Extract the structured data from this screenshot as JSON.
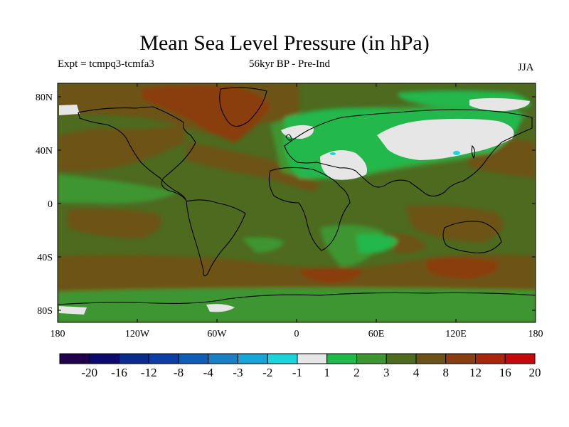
{
  "title": "Mean Sea Level Pressure (in hPa)",
  "subtitle_left": "Expt = tcmpq3-tcmfa3",
  "subtitle_center": "56kyr BP - Pre-Ind",
  "subtitle_right": "JJA",
  "lat_ticks": [
    "80N",
    "40N",
    "0",
    "40S",
    "80S"
  ],
  "lon_ticks": [
    "180",
    "120W",
    "60W",
    "0",
    "60E",
    "120E",
    "180"
  ],
  "colorbar": {
    "labels": [
      "-20",
      "-16",
      "-12",
      "-8",
      "-4",
      "-3",
      "-2",
      "-1",
      "1",
      "2",
      "3",
      "4",
      "8",
      "12",
      "16",
      "20"
    ],
    "colors": [
      "#21004e",
      "#0c0a6c",
      "#0a2a8c",
      "#0c3ea6",
      "#0e5db6",
      "#1a80c4",
      "#17a5d8",
      "#1ad6dc",
      "#e6e6e6",
      "#21b84c",
      "#3d9631",
      "#4d6c1f",
      "#6d5218",
      "#8a3d10",
      "#a9250c",
      "#c4090a"
    ]
  },
  "colors": {
    "ocean_base": "#4d6a1f",
    "positive_4_8": "#6d5218",
    "positive_8_12": "#8a3d10",
    "near_zero": "#e6e6e6",
    "light_green": "#21b84c",
    "mid_green": "#3d9631",
    "cyan": "#1ad6dc"
  }
}
